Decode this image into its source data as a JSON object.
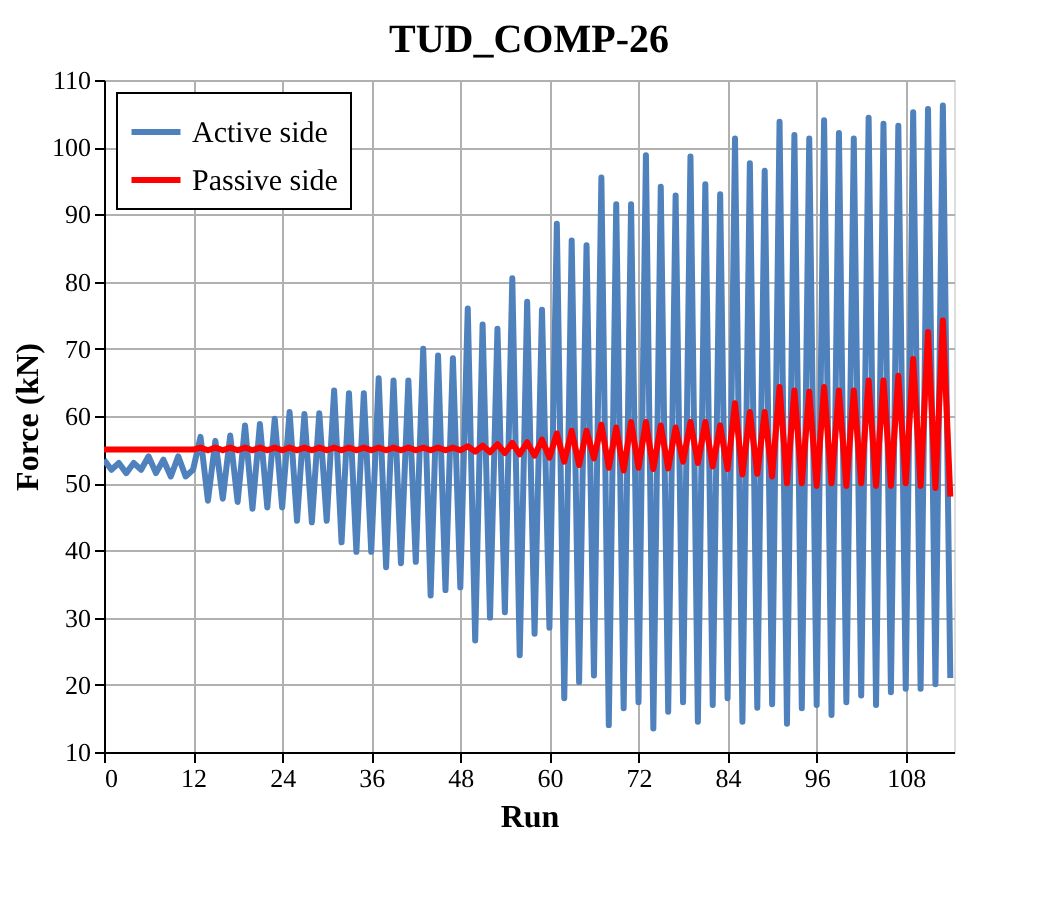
{
  "chart_data": {
    "type": "line",
    "title": "TUD_COMP-26",
    "xlabel": "Run",
    "ylabel": "Force (kN)",
    "xlim": [
      0,
      114.5
    ],
    "xticks": [
      0,
      12,
      24,
      36,
      48,
      60,
      72,
      84,
      96,
      108
    ],
    "ylim": [
      10,
      110
    ],
    "yticks": [
      10,
      20,
      30,
      40,
      50,
      60,
      70,
      80,
      90,
      100,
      110
    ],
    "grid": true,
    "legend": "top left",
    "marker": "none",
    "line_style": "solid",
    "x": [
      0,
      1,
      2,
      3,
      4,
      5,
      6,
      7,
      8,
      9,
      10,
      11,
      12,
      13,
      14,
      15,
      16,
      17,
      18,
      19,
      20,
      21,
      22,
      23,
      24,
      25,
      26,
      27,
      28,
      29,
      30,
      31,
      32,
      33,
      34,
      35,
      36,
      37,
      38,
      39,
      40,
      41,
      42,
      43,
      44,
      45,
      46,
      47,
      48,
      49,
      50,
      51,
      52,
      53,
      54,
      55,
      56,
      57,
      58,
      59,
      60,
      61,
      62,
      63,
      64,
      65,
      66,
      67,
      68,
      69,
      70,
      71,
      72,
      73,
      74,
      75,
      76,
      77,
      78,
      79,
      80,
      81,
      82,
      83,
      84,
      85,
      86,
      87,
      88,
      89,
      90,
      91,
      92,
      93,
      94,
      95,
      96,
      97,
      98,
      99,
      100,
      101,
      102,
      103,
      104,
      105,
      106,
      107,
      108,
      109,
      110,
      111,
      112,
      113,
      114
    ],
    "series": [
      {
        "name": "Active side",
        "color": "#4f81bd",
        "values": [
          53.5,
          52,
          53,
          51.5,
          53,
          52,
          54,
          51.5,
          53.5,
          51,
          54,
          51,
          52,
          56.9,
          47.4,
          56.3,
          47.7,
          57.1,
          47.2,
          58.6,
          46.2,
          58.8,
          46.4,
          59.6,
          46.4,
          60.6,
          44.4,
          60.3,
          44.2,
          60.4,
          44.4,
          63.8,
          41.2,
          63.4,
          39.8,
          63.4,
          39.8,
          65.6,
          37.5,
          65.3,
          38.1,
          65.3,
          38.3,
          70.0,
          33.3,
          69.0,
          34.1,
          68.6,
          34.5,
          76.0,
          26.6,
          73.6,
          30.0,
          73.0,
          30.8,
          80.5,
          24.4,
          77.0,
          27.6,
          75.8,
          28.5,
          88.6,
          18.0,
          86.1,
          20.4,
          85.4,
          21.4,
          95.5,
          14.0,
          91.5,
          16.5,
          91.5,
          17.4,
          98.8,
          13.5,
          94.1,
          16.0,
          92.8,
          17.4,
          98.6,
          14.5,
          94.5,
          17.0,
          93.0,
          18.0,
          101.3,
          14.5,
          97.6,
          16.6,
          96.5,
          17.1,
          103.8,
          14.2,
          101.8,
          16.5,
          101.3,
          17.0,
          104.0,
          15.5,
          102.1,
          17.4,
          101.3,
          18.4,
          104.4,
          17.0,
          103.5,
          18.9,
          103.2,
          19.4,
          105.2,
          19.4,
          105.7,
          20.1,
          106.2,
          21
        ]
      },
      {
        "name": "Passive side",
        "color": "#ff0000",
        "values": [
          55,
          55,
          55,
          55,
          55,
          55,
          55,
          55,
          55,
          55,
          55,
          55,
          55,
          55.3,
          54.9,
          55.3,
          54.9,
          55.3,
          54.9,
          55.3,
          54.9,
          55.3,
          54.9,
          55.3,
          54.9,
          55.3,
          54.9,
          55.3,
          54.9,
          55.3,
          54.9,
          55.3,
          54.9,
          55.3,
          54.9,
          55.3,
          54.9,
          55.3,
          54.9,
          55.3,
          54.9,
          55.3,
          54.9,
          55.3,
          54.9,
          55.3,
          54.9,
          55.3,
          54.9,
          55.5,
          54.7,
          55.6,
          54.6,
          55.8,
          54.5,
          56.0,
          54.3,
          56.1,
          54.1,
          56.5,
          53.8,
          57.4,
          53.2,
          57.8,
          52.7,
          57.8,
          53.7,
          58.7,
          52.3,
          58.3,
          51.9,
          59.1,
          52.3,
          59.1,
          52.1,
          58.6,
          52.2,
          58.3,
          53.2,
          59.1,
          53.0,
          59.1,
          52.5,
          58.6,
          52.1,
          61.9,
          51.3,
          60.6,
          51.4,
          60.6,
          51.0,
          64.3,
          50.0,
          63.8,
          50.0,
          63.6,
          49.6,
          64.3,
          50.0,
          63.8,
          49.6,
          63.8,
          50.0,
          65.3,
          49.6,
          65.3,
          49.6,
          66.0,
          50.0,
          68.5,
          49.6,
          72.5,
          49.3,
          74.2,
          48
        ]
      }
    ]
  }
}
